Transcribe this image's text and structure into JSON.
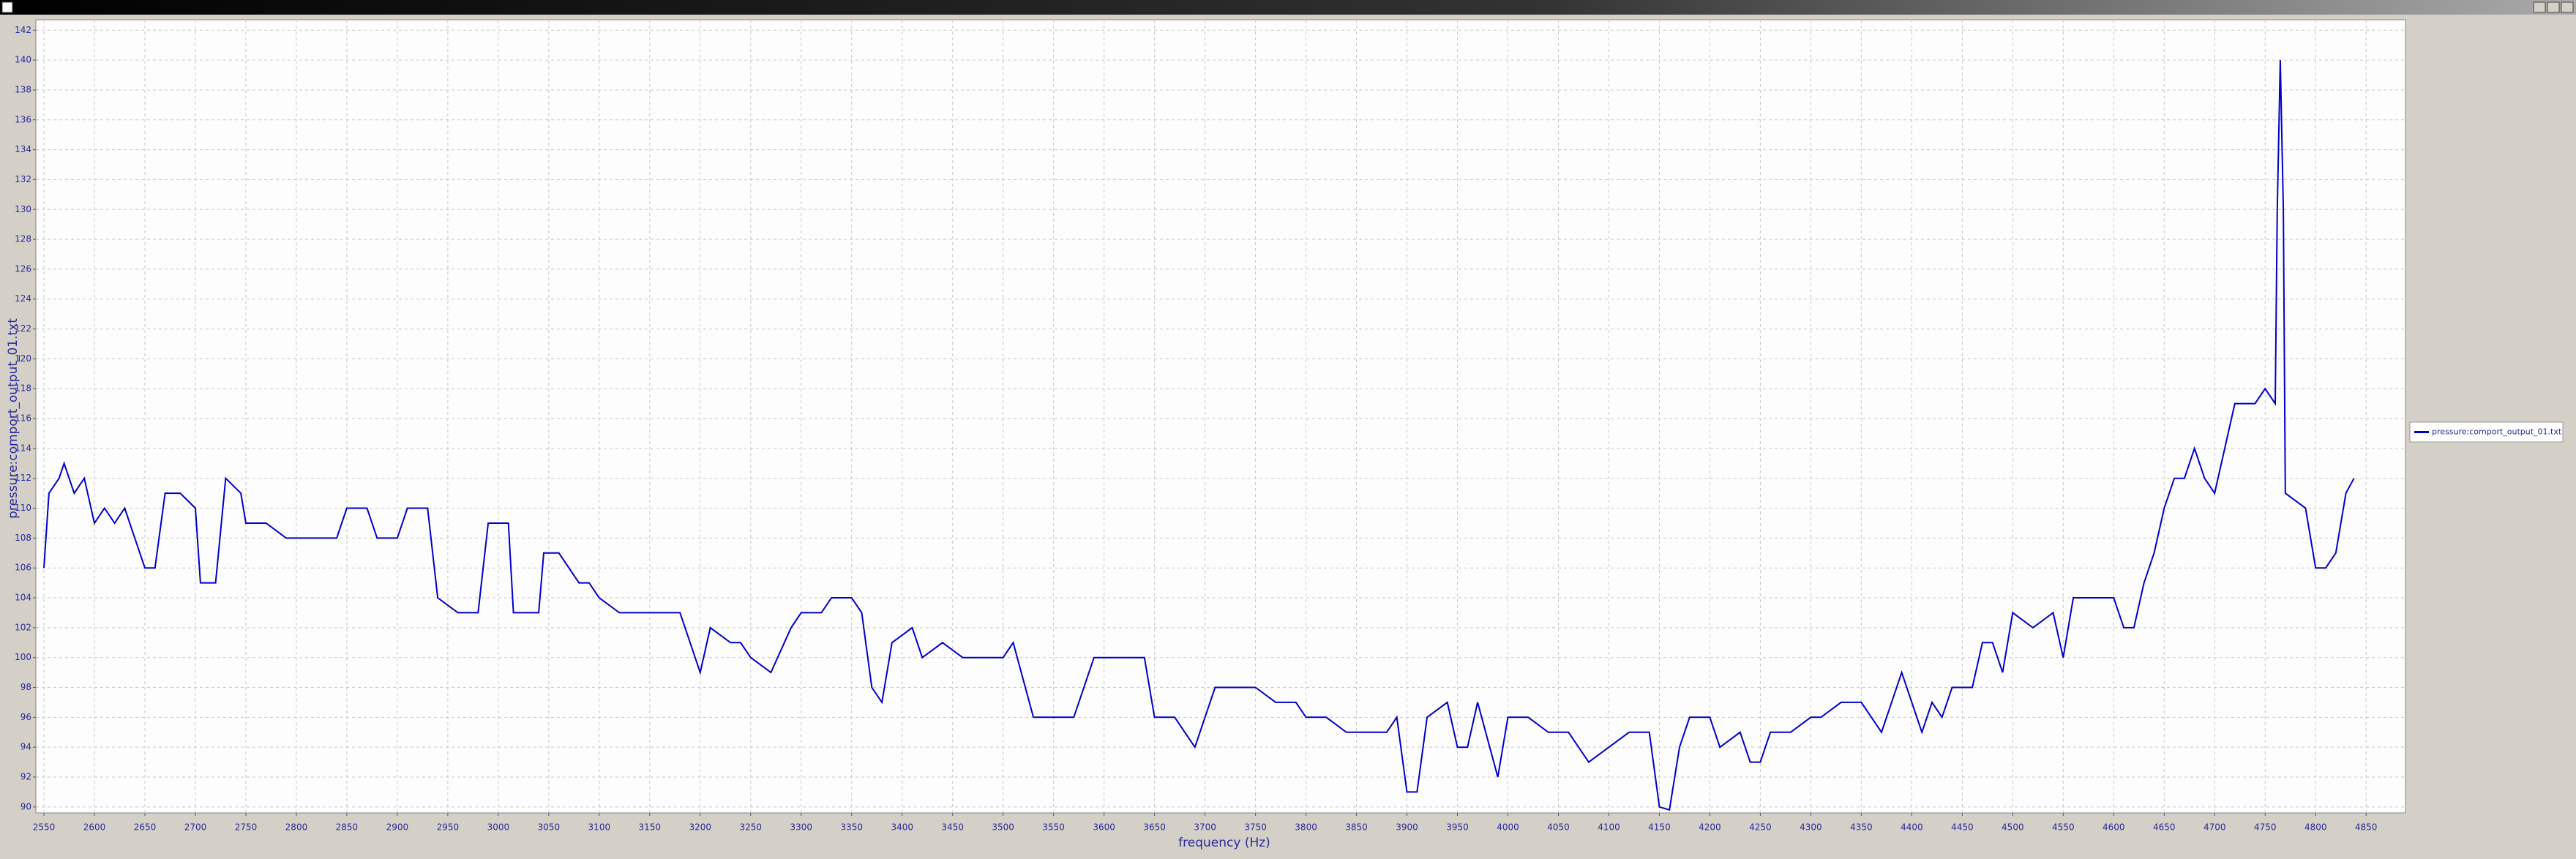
{
  "chart_data": {
    "type": "line",
    "x_label": "frequency (Hz)",
    "y_label": "pressure:comport_output_01.txt",
    "x": [
      2550,
      2555,
      2565,
      2570,
      2580,
      2590,
      2600,
      2610,
      2620,
      2630,
      2640,
      2650,
      2660,
      2670,
      2685,
      2700,
      2705,
      2720,
      2730,
      2745,
      2750,
      2770,
      2790,
      2800,
      2820,
      2840,
      2850,
      2870,
      2880,
      2900,
      2910,
      2930,
      2940,
      2960,
      2980,
      2990,
      3010,
      3015,
      3040,
      3045,
      3060,
      3080,
      3090,
      3100,
      3120,
      3140,
      3160,
      3180,
      3190,
      3200,
      3210,
      3230,
      3240,
      3250,
      3270,
      3290,
      3300,
      3320,
      3330,
      3350,
      3360,
      3370,
      3380,
      3390,
      3410,
      3420,
      3440,
      3460,
      3480,
      3500,
      3510,
      3530,
      3550,
      3570,
      3590,
      3600,
      3620,
      3640,
      3650,
      3670,
      3680,
      3690,
      3700,
      3710,
      3730,
      3750,
      3770,
      3790,
      3800,
      3820,
      3840,
      3860,
      3880,
      3890,
      3900,
      3910,
      3920,
      3940,
      3950,
      3960,
      3970,
      3990,
      4000,
      4020,
      4040,
      4060,
      4080,
      4100,
      4120,
      4140,
      4150,
      4160,
      4170,
      4180,
      4200,
      4210,
      4230,
      4240,
      4250,
      4260,
      4280,
      4300,
      4310,
      4330,
      4350,
      4360,
      4370,
      4390,
      4400,
      4410,
      4420,
      4430,
      4440,
      4460,
      4470,
      4480,
      4490,
      4500,
      4520,
      4540,
      4550,
      4560,
      4580,
      4600,
      4610,
      4620,
      4630,
      4640,
      4650,
      4660,
      4670,
      4680,
      4690,
      4700,
      4710,
      4720,
      4740,
      4750,
      4760,
      4762,
      4765,
      4768,
      4770,
      4790,
      4800,
      4810,
      4820,
      4830,
      4838
    ],
    "series": [
      {
        "name": "pressure:comport_output_01.txt",
        "color": "#0000cc",
        "values": [
          106,
          111,
          112,
          113,
          111,
          112,
          109,
          110,
          109,
          110,
          108,
          106,
          106,
          111,
          111,
          110,
          105,
          105,
          112,
          111,
          109,
          109,
          108,
          108,
          108,
          108,
          110,
          110,
          108,
          108,
          110,
          110,
          104,
          103,
          103,
          109,
          109,
          103,
          103,
          107,
          107,
          105,
          105,
          104,
          103,
          103,
          103,
          103,
          101,
          99,
          102,
          101,
          101,
          100,
          99,
          102,
          103,
          103,
          104,
          104,
          103,
          98,
          97,
          101,
          102,
          100,
          101,
          100,
          100,
          100,
          101,
          96,
          96,
          96,
          100,
          100,
          100,
          100,
          96,
          96,
          95,
          94,
          96,
          98,
          98,
          98,
          97,
          97,
          96,
          96,
          95,
          95,
          95,
          96,
          91,
          91,
          96,
          97,
          94,
          94,
          97,
          92,
          96,
          96,
          95,
          95,
          93,
          94,
          95,
          95,
          90,
          89.8,
          94,
          96,
          96,
          94,
          95,
          93,
          93,
          95,
          95,
          96,
          96,
          97,
          97,
          96,
          95,
          99,
          97,
          95,
          97,
          96,
          98,
          98,
          101,
          101,
          99,
          103,
          102,
          103,
          100,
          104,
          104,
          104,
          102,
          102,
          105,
          107,
          110,
          112,
          112,
          114,
          112,
          111,
          114,
          117,
          117,
          118,
          117,
          130,
          140,
          130,
          111,
          110,
          106,
          106,
          107,
          111,
          112
        ]
      }
    ],
    "xlim": [
      2542,
      4889
    ],
    "ylim": [
      89.6,
      142.7
    ],
    "xticks": [
      2550,
      2600,
      2650,
      2700,
      2750,
      2800,
      2850,
      2900,
      2950,
      3000,
      3050,
      3100,
      3150,
      3200,
      3250,
      3300,
      3350,
      3400,
      3450,
      3500,
      3550,
      3600,
      3650,
      3700,
      3750,
      3800,
      3850,
      3900,
      3950,
      4000,
      4050,
      4100,
      4150,
      4200,
      4250,
      4300,
      4350,
      4400,
      4450,
      4500,
      4550,
      4600,
      4650,
      4700,
      4750,
      4800,
      4850
    ],
    "yticks": [
      90,
      92,
      94,
      96,
      98,
      100,
      102,
      104,
      106,
      108,
      110,
      112,
      114,
      116,
      118,
      120,
      122,
      124,
      126,
      128,
      130,
      132,
      134,
      136,
      138,
      140,
      142
    ],
    "grid": true,
    "legend": "right"
  }
}
